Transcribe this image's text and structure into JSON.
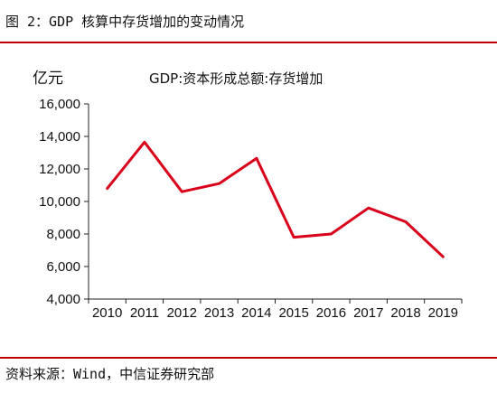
{
  "figure": {
    "title": "图 2：GDP 核算中存货增加的变动情况",
    "source": "资料来源：Wind，中信证券研究部"
  },
  "chart_data": {
    "type": "line",
    "title": "GDP:资本形成总额:存货增加",
    "ylabel": "亿元",
    "xlabel": "",
    "x": [
      "2010",
      "2011",
      "2012",
      "2013",
      "2014",
      "2015",
      "2016",
      "2017",
      "2018",
      "2019"
    ],
    "series": [
      {
        "name": "GDP:资本形成总额:存货增加",
        "color": "#d9001b",
        "values": [
          10800,
          13650,
          10600,
          11100,
          12650,
          7800,
          8000,
          9600,
          8750,
          6600
        ]
      }
    ],
    "ylim": [
      4000,
      16000
    ],
    "yticks": [
      4000,
      6000,
      8000,
      10000,
      12000,
      14000,
      16000
    ],
    "ytick_labels": [
      "4,000",
      "6,000",
      "8,000",
      "10,000",
      "12,000",
      "14,000",
      "16,000"
    ],
    "grid": false,
    "legend": "top-center"
  }
}
